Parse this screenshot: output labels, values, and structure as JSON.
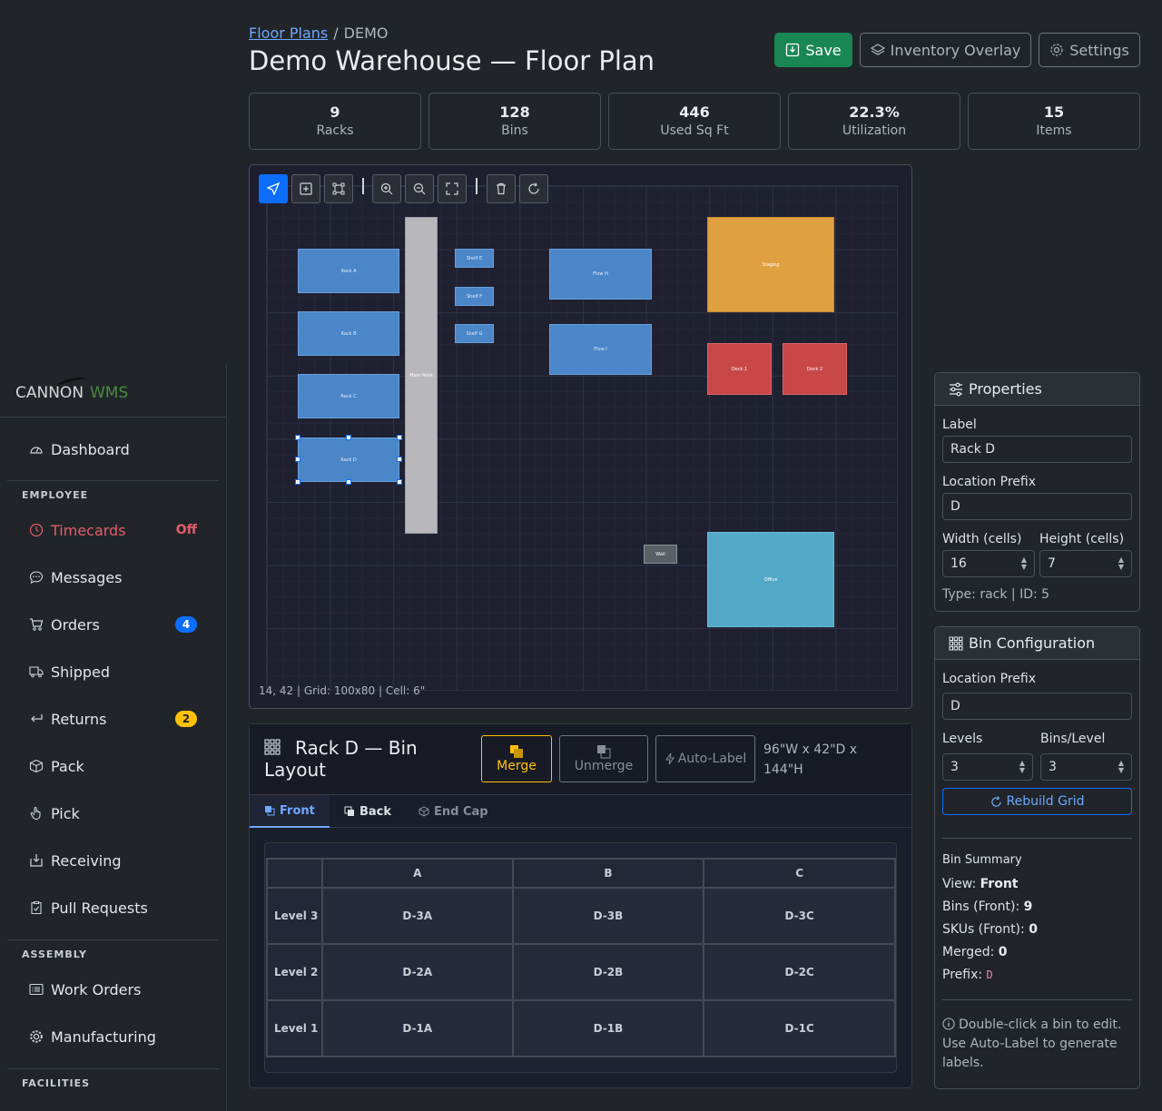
{
  "breadcrumb": {
    "root": "Floor Plans",
    "current": "DEMO",
    "separator": "/"
  },
  "page_title": "Demo Warehouse — Floor Plan",
  "actions": {
    "save": "Save",
    "inventory_overlay": "Inventory Overlay",
    "settings": "Settings"
  },
  "stats": [
    {
      "value": "9",
      "label": "Racks"
    },
    {
      "value": "128",
      "label": "Bins"
    },
    {
      "value": "446",
      "label": "Used Sq Ft"
    },
    {
      "value": "22.3%",
      "label": "Utilization"
    },
    {
      "value": "15",
      "label": "Items"
    }
  ],
  "canvas": {
    "status": "14, 42 | Grid: 100x80 | Cell: 6\"",
    "shapes": {
      "rack_a": "Rack A",
      "rack_b": "Rack B",
      "rack_c": "Rack C",
      "rack_d": "Rack D",
      "main_aisle": "Main Aisle",
      "shelf_e": "Shelf E",
      "shelf_f": "Shelf F",
      "shelf_g": "Shelf G",
      "flow_h": "Flow H",
      "flow_i": "Flow I",
      "staging": "Staging",
      "dock_1": "Dock 1",
      "dock_2": "Dock 2",
      "wall": "Wall",
      "office": "Office"
    }
  },
  "sidebar": {
    "logo_left": "CANNON",
    "logo_right": "WMS",
    "dashboard": "Dashboard",
    "section_employee": "EMPLOYEE",
    "timecards": "Timecards",
    "timecards_status": "Off",
    "messages": "Messages",
    "orders": "Orders",
    "orders_count": "4",
    "shipped": "Shipped",
    "returns": "Returns",
    "returns_count": "2",
    "pack": "Pack",
    "pick": "Pick",
    "receiving": "Receiving",
    "pull_requests": "Pull Requests",
    "section_assembly": "ASSEMBLY",
    "work_orders": "Work Orders",
    "manufacturing": "Manufacturing",
    "section_facilities": "FACILITIES"
  },
  "bin_layout": {
    "title": "Rack D — Bin Layout",
    "merge": "Merge",
    "unmerge": "Unmerge",
    "auto_label": "Auto-Label",
    "dimensions": "96\"W x 42\"D x 144\"H",
    "tabs": {
      "front": "Front",
      "back": "Back",
      "end_cap": "End Cap"
    },
    "columns": [
      "A",
      "B",
      "C"
    ],
    "rows": [
      {
        "level": "Level 3",
        "bins": [
          "D-3A",
          "D-3B",
          "D-3C"
        ]
      },
      {
        "level": "Level 2",
        "bins": [
          "D-2A",
          "D-2B",
          "D-2C"
        ]
      },
      {
        "level": "Level 1",
        "bins": [
          "D-1A",
          "D-1B",
          "D-1C"
        ]
      }
    ]
  },
  "properties": {
    "title": "Properties",
    "label_label": "Label",
    "label_value": "Rack D",
    "prefix_label": "Location Prefix",
    "prefix_value": "D",
    "width_label": "Width (cells)",
    "width_value": "16",
    "height_label": "Height (cells)",
    "height_value": "7",
    "type_info": "Type: rack | ID: 5"
  },
  "bin_config": {
    "title": "Bin Configuration",
    "prefix_label": "Location Prefix",
    "prefix_value": "D",
    "levels_label": "Levels",
    "levels_value": "3",
    "bins_label": "Bins/Level",
    "bins_value": "3",
    "rebuild": "Rebuild Grid",
    "summary_title": "Bin Summary",
    "view_label": "View:",
    "view_value": "Front",
    "bins_front_label": "Bins (Front):",
    "bins_front_value": "9",
    "skus_label": "SKUs (Front):",
    "skus_value": "0",
    "merged_label": "Merged:",
    "merged_value": "0",
    "prefix_sum_label": "Prefix:",
    "prefix_sum_value": "D",
    "hint": "Double-click a bin to edit. Use Auto-Label to generate labels."
  }
}
